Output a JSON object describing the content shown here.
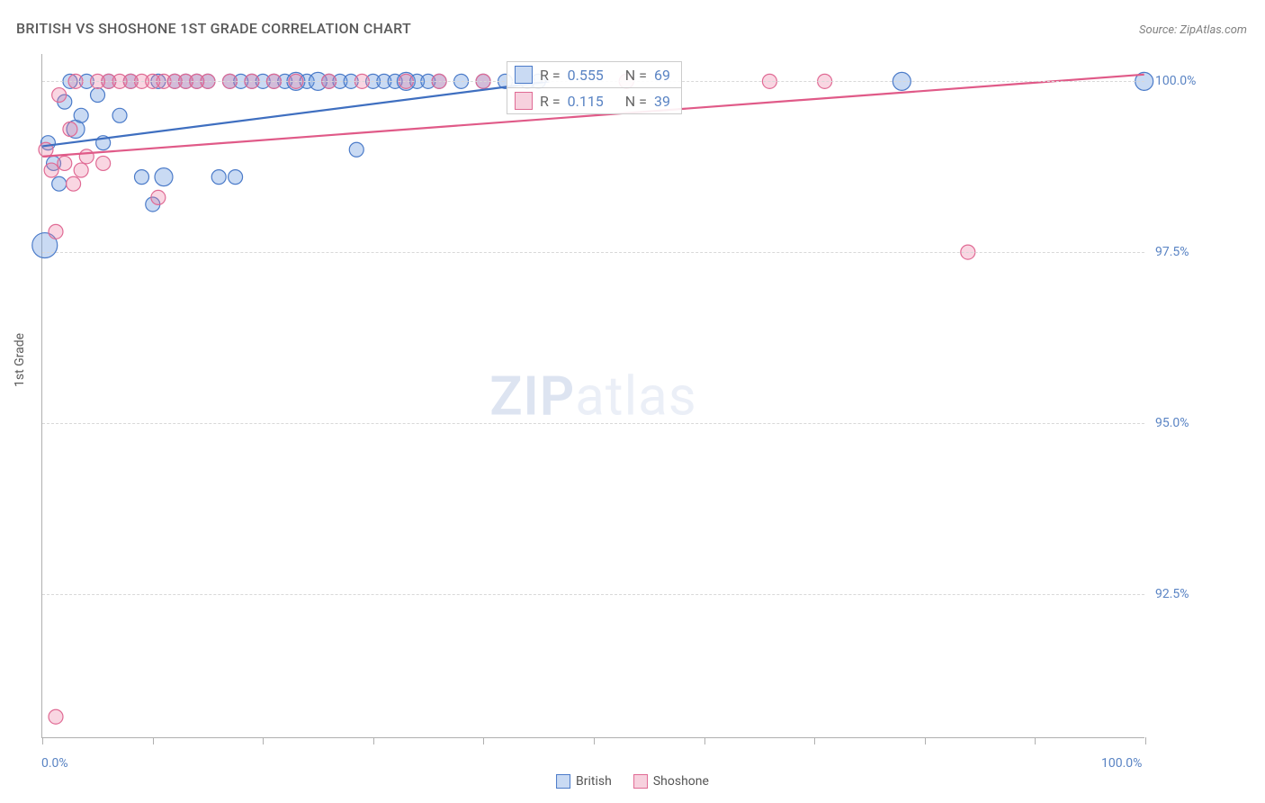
{
  "title": "BRITISH VS SHOSHONE 1ST GRADE CORRELATION CHART",
  "source": "Source: ZipAtlas.com",
  "y_axis_label": "1st Grade",
  "watermark_zip": "ZIP",
  "watermark_atlas": "atlas",
  "chart": {
    "type": "scatter",
    "xlim": [
      0,
      100
    ],
    "ylim": [
      90.4,
      100.4
    ],
    "background_color": "#ffffff",
    "grid_color": "#d8d8d8",
    "y_ticks": [
      {
        "value": 92.5,
        "label": "92.5%"
      },
      {
        "value": 95.0,
        "label": "95.0%"
      },
      {
        "value": 97.5,
        "label": "97.5%"
      },
      {
        "value": 100.0,
        "label": "100.0%"
      }
    ],
    "x_ticks_at": [
      0,
      10,
      20,
      30,
      40,
      50,
      60,
      70,
      80,
      90,
      100
    ],
    "x_tick_labels": [
      {
        "value": 0,
        "label": "0.0%"
      },
      {
        "value": 100,
        "label": "100.0%"
      }
    ],
    "series": [
      {
        "name": "British",
        "color_fill": "rgba(99, 148, 222, 0.35)",
        "color_stroke": "#4b7bc9",
        "swatch_fill": "#c9daf3",
        "swatch_border": "#4b7bc9",
        "line_color": "#3f6fc0",
        "line_width": 2.2,
        "r": 0.555,
        "n": 69,
        "trend": {
          "x1": 0,
          "y1": 99.05,
          "x2": 46,
          "y2": 100.0
        },
        "points": [
          {
            "x": 0.2,
            "y": 97.6,
            "r": 14
          },
          {
            "x": 0.5,
            "y": 99.1,
            "r": 8
          },
          {
            "x": 1.0,
            "y": 98.8,
            "r": 8
          },
          {
            "x": 1.5,
            "y": 98.5,
            "r": 8
          },
          {
            "x": 2.0,
            "y": 99.7,
            "r": 8
          },
          {
            "x": 2.5,
            "y": 100.0,
            "r": 8
          },
          {
            "x": 3.0,
            "y": 99.3,
            "r": 10
          },
          {
            "x": 3.5,
            "y": 99.5,
            "r": 8
          },
          {
            "x": 4.0,
            "y": 100.0,
            "r": 8
          },
          {
            "x": 5.0,
            "y": 99.8,
            "r": 8
          },
          {
            "x": 5.5,
            "y": 99.1,
            "r": 8
          },
          {
            "x": 6.0,
            "y": 100.0,
            "r": 8
          },
          {
            "x": 7.0,
            "y": 99.5,
            "r": 8
          },
          {
            "x": 8.0,
            "y": 100.0,
            "r": 8
          },
          {
            "x": 9.0,
            "y": 98.6,
            "r": 8
          },
          {
            "x": 10.0,
            "y": 98.2,
            "r": 8
          },
          {
            "x": 10.5,
            "y": 100.0,
            "r": 8
          },
          {
            "x": 11.0,
            "y": 98.6,
            "r": 10
          },
          {
            "x": 12.0,
            "y": 100.0,
            "r": 8
          },
          {
            "x": 13.0,
            "y": 100.0,
            "r": 8
          },
          {
            "x": 14.0,
            "y": 100.0,
            "r": 8
          },
          {
            "x": 15.0,
            "y": 100.0,
            "r": 8
          },
          {
            "x": 16.0,
            "y": 98.6,
            "r": 8
          },
          {
            "x": 17.0,
            "y": 100.0,
            "r": 8
          },
          {
            "x": 17.5,
            "y": 98.6,
            "r": 8
          },
          {
            "x": 18.0,
            "y": 100.0,
            "r": 8
          },
          {
            "x": 19.0,
            "y": 100.0,
            "r": 8
          },
          {
            "x": 20.0,
            "y": 100.0,
            "r": 8
          },
          {
            "x": 21.0,
            "y": 100.0,
            "r": 8
          },
          {
            "x": 22.0,
            "y": 100.0,
            "r": 8
          },
          {
            "x": 23.0,
            "y": 100.0,
            "r": 10
          },
          {
            "x": 24.0,
            "y": 100.0,
            "r": 8
          },
          {
            "x": 25.0,
            "y": 100.0,
            "r": 10
          },
          {
            "x": 26.0,
            "y": 100.0,
            "r": 8
          },
          {
            "x": 27.0,
            "y": 100.0,
            "r": 8
          },
          {
            "x": 28.0,
            "y": 100.0,
            "r": 8
          },
          {
            "x": 28.5,
            "y": 99.0,
            "r": 8
          },
          {
            "x": 30.0,
            "y": 100.0,
            "r": 8
          },
          {
            "x": 31.0,
            "y": 100.0,
            "r": 8
          },
          {
            "x": 32.0,
            "y": 100.0,
            "r": 8
          },
          {
            "x": 33.0,
            "y": 100.0,
            "r": 10
          },
          {
            "x": 34.0,
            "y": 100.0,
            "r": 8
          },
          {
            "x": 35.0,
            "y": 100.0,
            "r": 8
          },
          {
            "x": 36.0,
            "y": 100.0,
            "r": 8
          },
          {
            "x": 38.0,
            "y": 100.0,
            "r": 8
          },
          {
            "x": 40.0,
            "y": 100.0,
            "r": 8
          },
          {
            "x": 42.0,
            "y": 100.0,
            "r": 8
          },
          {
            "x": 44.0,
            "y": 100.0,
            "r": 8
          },
          {
            "x": 45.0,
            "y": 100.0,
            "r": 8
          },
          {
            "x": 78.0,
            "y": 100.0,
            "r": 10
          },
          {
            "x": 100.0,
            "y": 100.0,
            "r": 10
          }
        ]
      },
      {
        "name": "Shoshone",
        "color_fill": "rgba(235, 120, 160, 0.3)",
        "color_stroke": "#e06a94",
        "swatch_fill": "#f7d1de",
        "swatch_border": "#e06a94",
        "line_color": "#e05a88",
        "line_width": 2.2,
        "r": 0.115,
        "n": 39,
        "trend": {
          "x1": 0,
          "y1": 98.9,
          "x2": 100,
          "y2": 100.1
        },
        "points": [
          {
            "x": 0.3,
            "y": 99.0,
            "r": 8
          },
          {
            "x": 0.8,
            "y": 98.7,
            "r": 8
          },
          {
            "x": 1.2,
            "y": 97.8,
            "r": 8
          },
          {
            "x": 1.2,
            "y": 90.7,
            "r": 8
          },
          {
            "x": 1.5,
            "y": 99.8,
            "r": 8
          },
          {
            "x": 2.0,
            "y": 98.8,
            "r": 8
          },
          {
            "x": 2.5,
            "y": 99.3,
            "r": 8
          },
          {
            "x": 2.8,
            "y": 98.5,
            "r": 8
          },
          {
            "x": 3.0,
            "y": 100.0,
            "r": 8
          },
          {
            "x": 3.5,
            "y": 98.7,
            "r": 8
          },
          {
            "x": 4.0,
            "y": 98.9,
            "r": 8
          },
          {
            "x": 5.0,
            "y": 100.0,
            "r": 8
          },
          {
            "x": 5.5,
            "y": 98.8,
            "r": 8
          },
          {
            "x": 6.0,
            "y": 100.0,
            "r": 8
          },
          {
            "x": 7.0,
            "y": 100.0,
            "r": 8
          },
          {
            "x": 8.0,
            "y": 100.0,
            "r": 8
          },
          {
            "x": 9.0,
            "y": 100.0,
            "r": 8
          },
          {
            "x": 10.0,
            "y": 100.0,
            "r": 8
          },
          {
            "x": 10.5,
            "y": 98.3,
            "r": 8
          },
          {
            "x": 11.0,
            "y": 100.0,
            "r": 8
          },
          {
            "x": 12.0,
            "y": 100.0,
            "r": 8
          },
          {
            "x": 13.0,
            "y": 100.0,
            "r": 8
          },
          {
            "x": 14.0,
            "y": 100.0,
            "r": 8
          },
          {
            "x": 15.0,
            "y": 100.0,
            "r": 8
          },
          {
            "x": 17.0,
            "y": 100.0,
            "r": 8
          },
          {
            "x": 19.0,
            "y": 100.0,
            "r": 8
          },
          {
            "x": 21.0,
            "y": 100.0,
            "r": 8
          },
          {
            "x": 23.0,
            "y": 100.0,
            "r": 8
          },
          {
            "x": 26.0,
            "y": 100.0,
            "r": 8
          },
          {
            "x": 29.0,
            "y": 100.0,
            "r": 8
          },
          {
            "x": 33.0,
            "y": 100.0,
            "r": 8
          },
          {
            "x": 36.0,
            "y": 100.0,
            "r": 8
          },
          {
            "x": 40.0,
            "y": 100.0,
            "r": 8
          },
          {
            "x": 53.0,
            "y": 100.0,
            "r": 8
          },
          {
            "x": 66.0,
            "y": 100.0,
            "r": 8
          },
          {
            "x": 71.0,
            "y": 100.0,
            "r": 8
          },
          {
            "x": 84.0,
            "y": 97.5,
            "r": 8
          }
        ]
      }
    ]
  },
  "legend_box": {
    "r_label": "R =",
    "n_label": "N ="
  },
  "bottom_legend": {
    "items": [
      {
        "label": "British"
      },
      {
        "label": "Shoshone"
      }
    ]
  }
}
